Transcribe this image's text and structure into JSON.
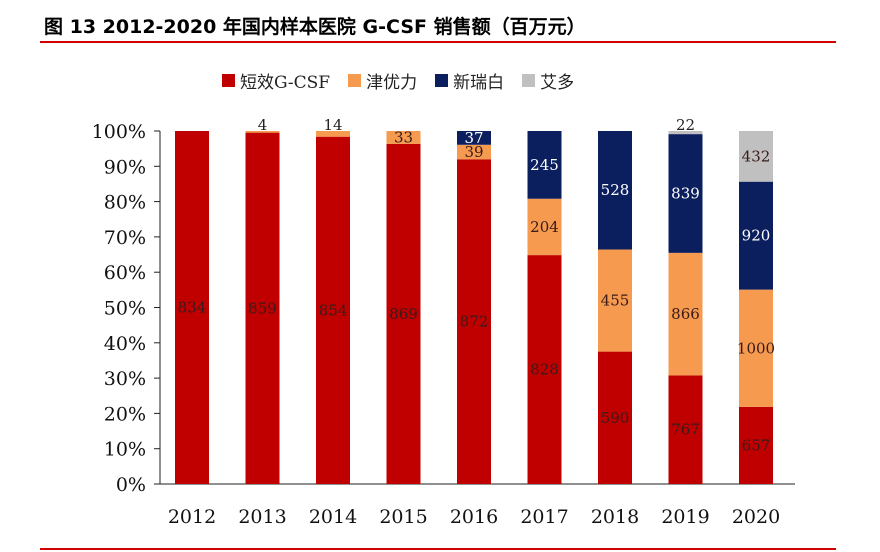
{
  "title": "图 13 2012-2020 年国内样本医院 G-CSF 销售额（百万元）",
  "chart_data": {
    "type": "bar",
    "stacked": "percent",
    "categories": [
      "2012",
      "2013",
      "2014",
      "2015",
      "2016",
      "2017",
      "2018",
      "2019",
      "2020"
    ],
    "series": [
      {
        "name": "短效G-CSF",
        "color": "#C00000",
        "values": [
          834,
          859,
          854,
          869,
          872,
          828,
          590,
          767,
          657
        ]
      },
      {
        "name": "津优力",
        "color": "#F59A4E",
        "values": [
          0,
          4,
          14,
          33,
          39,
          204,
          455,
          866,
          1000
        ]
      },
      {
        "name": "新瑞白",
        "color": "#0B1F5F",
        "values": [
          0,
          0,
          0,
          0,
          37,
          245,
          528,
          839,
          920
        ]
      },
      {
        "name": "艾多",
        "color": "#C0C0C0",
        "values": [
          0,
          0,
          0,
          0,
          0,
          0,
          0,
          22,
          432
        ]
      }
    ],
    "yticks": [
      "0%",
      "10%",
      "20%",
      "30%",
      "40%",
      "50%",
      "60%",
      "70%",
      "80%",
      "90%",
      "100%"
    ],
    "ylim": [
      0,
      100
    ],
    "grid": false,
    "legend": "top"
  }
}
